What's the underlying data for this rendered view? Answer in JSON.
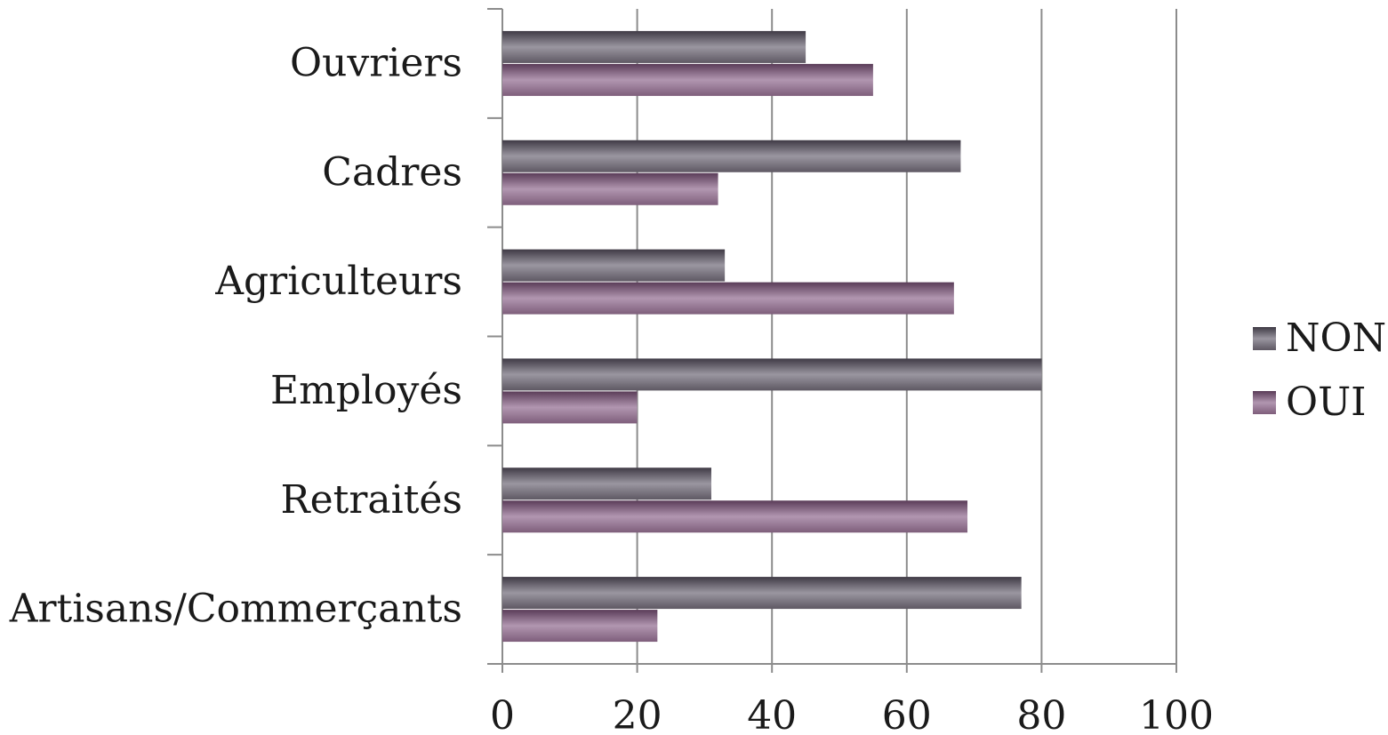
{
  "chart_data": {
    "type": "bar",
    "orientation": "horizontal",
    "categories": [
      "Ouvriers",
      "Cadres",
      "Agriculteurs",
      "Employés",
      "Retraités",
      "Artisans/Commerçants"
    ],
    "series": [
      {
        "name": "NON",
        "values": [
          45,
          68,
          33,
          80,
          31,
          77
        ],
        "color": "#6b6470"
      },
      {
        "name": "OUI",
        "values": [
          55,
          32,
          67,
          20,
          69,
          23
        ],
        "color": "#8a6a85"
      }
    ],
    "xlim": [
      0,
      100
    ],
    "xticks": [
      "0",
      "20",
      "40",
      "60",
      "80",
      "100"
    ],
    "grid": true,
    "legend_position": "right"
  }
}
